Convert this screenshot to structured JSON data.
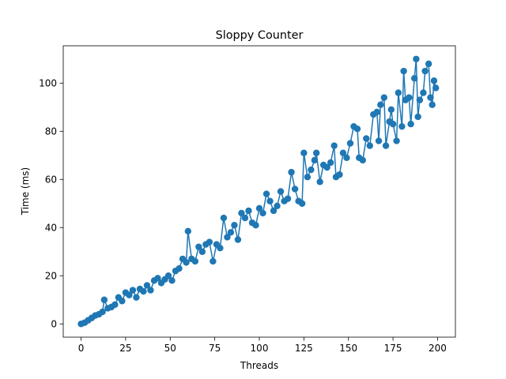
{
  "chart_data": {
    "type": "line",
    "title": "Sloppy Counter",
    "xlabel": "Threads",
    "ylabel": "Time (ms)",
    "xlim": [
      -10,
      210
    ],
    "ylim": [
      -5.5,
      115.5
    ],
    "xticks": [
      0,
      25,
      50,
      75,
      100,
      125,
      150,
      175,
      200
    ],
    "yticks": [
      0,
      20,
      40,
      60,
      80,
      100
    ],
    "grid": false,
    "legend": "none",
    "series": [
      {
        "color": "#1f77b4",
        "marker": "circle",
        "points": [
          [
            0,
            0.0
          ],
          [
            2,
            0.5
          ],
          [
            4,
            1.5
          ],
          [
            6,
            2.5
          ],
          [
            8,
            3.5
          ],
          [
            10,
            4.0
          ],
          [
            12,
            5.0
          ],
          [
            13,
            10.0
          ],
          [
            15,
            6.5
          ],
          [
            17,
            7.0
          ],
          [
            19,
            8.0
          ],
          [
            21,
            11.0
          ],
          [
            23,
            9.5
          ],
          [
            25,
            13.0
          ],
          [
            27,
            12.0
          ],
          [
            29,
            14.0
          ],
          [
            31,
            11.0
          ],
          [
            33,
            14.5
          ],
          [
            35,
            13.5
          ],
          [
            37,
            16.0
          ],
          [
            39,
            14.0
          ],
          [
            41,
            18.0
          ],
          [
            43,
            19.0
          ],
          [
            45,
            17.0
          ],
          [
            47,
            18.5
          ],
          [
            49,
            20.0
          ],
          [
            51,
            18.0
          ],
          [
            53,
            22.0
          ],
          [
            55,
            23.0
          ],
          [
            57,
            27.0
          ],
          [
            59,
            25.5
          ],
          [
            60,
            38.5
          ],
          [
            62,
            27.0
          ],
          [
            64,
            26.0
          ],
          [
            66,
            32.0
          ],
          [
            68,
            30.0
          ],
          [
            70,
            33.0
          ],
          [
            72,
            34.0
          ],
          [
            74,
            26.0
          ],
          [
            76,
            33.0
          ],
          [
            78,
            31.5
          ],
          [
            80,
            44.0
          ],
          [
            82,
            36.0
          ],
          [
            84,
            38.0
          ],
          [
            86,
            41.0
          ],
          [
            88,
            35.0
          ],
          [
            90,
            46.0
          ],
          [
            92,
            44.0
          ],
          [
            94,
            47.0
          ],
          [
            96,
            42.0
          ],
          [
            98,
            41.0
          ],
          [
            100,
            48.0
          ],
          [
            102,
            46.0
          ],
          [
            104,
            54.0
          ],
          [
            106,
            51.0
          ],
          [
            108,
            47.0
          ],
          [
            110,
            49.0
          ],
          [
            112,
            55.0
          ],
          [
            114,
            51.0
          ],
          [
            116,
            52.0
          ],
          [
            118,
            63.0
          ],
          [
            120,
            56.0
          ],
          [
            122,
            51.0
          ],
          [
            124,
            50.0
          ],
          [
            125,
            71.0
          ],
          [
            127,
            61.0
          ],
          [
            129,
            64.0
          ],
          [
            131,
            68.0
          ],
          [
            132,
            71.0
          ],
          [
            134,
            59.0
          ],
          [
            136,
            66.0
          ],
          [
            138,
            65.0
          ],
          [
            140,
            67.0
          ],
          [
            142,
            74.0
          ],
          [
            143,
            61.0
          ],
          [
            145,
            62.0
          ],
          [
            147,
            71.0
          ],
          [
            149,
            69.0
          ],
          [
            151,
            75.0
          ],
          [
            153,
            82.0
          ],
          [
            155,
            81.0
          ],
          [
            156,
            69.0
          ],
          [
            158,
            68.0
          ],
          [
            160,
            77.0
          ],
          [
            162,
            74.0
          ],
          [
            164,
            87.0
          ],
          [
            166,
            88.0
          ],
          [
            167,
            76.0
          ],
          [
            168,
            91.0
          ],
          [
            170,
            94.0
          ],
          [
            171,
            74.0
          ],
          [
            173,
            84.0
          ],
          [
            174,
            89.0
          ],
          [
            175,
            83.0
          ],
          [
            177,
            76.0
          ],
          [
            178,
            96.0
          ],
          [
            180,
            82.0
          ],
          [
            181,
            105.0
          ],
          [
            182,
            93.0
          ],
          [
            184,
            94.0
          ],
          [
            185,
            83.0
          ],
          [
            187,
            102.0
          ],
          [
            188,
            110.0
          ],
          [
            189,
            86.0
          ],
          [
            190,
            93.0
          ],
          [
            192,
            96.0
          ],
          [
            193,
            105.0
          ],
          [
            195,
            108.0
          ],
          [
            196,
            94.0
          ],
          [
            197,
            91.0
          ],
          [
            198,
            101.0
          ],
          [
            199,
            98.0
          ]
        ]
      }
    ]
  }
}
